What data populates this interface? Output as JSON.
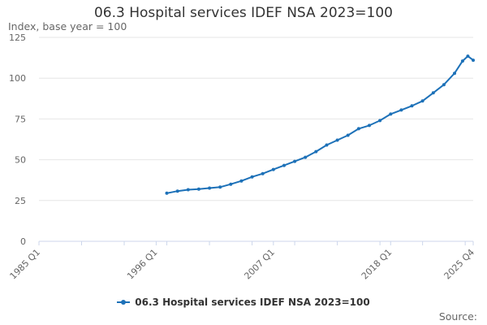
{
  "chart_data": {
    "type": "line",
    "title": "06.3 Hospital services IDEF NSA 2023=100",
    "ylabel": "Index, base year = 100",
    "xlabel": "",
    "ylim": [
      0,
      125
    ],
    "yticks": [
      0,
      25,
      50,
      75,
      100,
      125
    ],
    "xlim": [
      "1985 Q1",
      "2025 Q4"
    ],
    "xticks": [
      "1985 Q1",
      "1996 Q1",
      "2007 Q1",
      "2018 Q1",
      "2025 Q4"
    ],
    "grid": true,
    "legend_position": "bottom",
    "series": [
      {
        "name": "06.3 Hospital services IDEF NSA 2023=100",
        "color": "#1d71b8",
        "points": [
          {
            "x": "1997 Q1",
            "y": 29.5
          },
          {
            "x": "1998 Q1",
            "y": 30.8
          },
          {
            "x": "1999 Q1",
            "y": 31.6
          },
          {
            "x": "2000 Q1",
            "y": 32.0
          },
          {
            "x": "2001 Q1",
            "y": 32.6
          },
          {
            "x": "2002 Q1",
            "y": 33.2
          },
          {
            "x": "2003 Q1",
            "y": 35.0
          },
          {
            "x": "2004 Q1",
            "y": 37.0
          },
          {
            "x": "2005 Q1",
            "y": 39.5
          },
          {
            "x": "2006 Q1",
            "y": 41.5
          },
          {
            "x": "2007 Q1",
            "y": 44.0
          },
          {
            "x": "2008 Q1",
            "y": 46.5
          },
          {
            "x": "2009 Q1",
            "y": 49.0
          },
          {
            "x": "2010 Q1",
            "y": 51.5
          },
          {
            "x": "2011 Q1",
            "y": 55.0
          },
          {
            "x": "2012 Q1",
            "y": 59.0
          },
          {
            "x": "2013 Q1",
            "y": 62.0
          },
          {
            "x": "2014 Q1",
            "y": 65.0
          },
          {
            "x": "2015 Q1",
            "y": 69.0
          },
          {
            "x": "2016 Q1",
            "y": 71.0
          },
          {
            "x": "2017 Q1",
            "y": 74.0
          },
          {
            "x": "2018 Q1",
            "y": 78.0
          },
          {
            "x": "2019 Q1",
            "y": 80.5
          },
          {
            "x": "2020 Q1",
            "y": 83.0
          },
          {
            "x": "2021 Q1",
            "y": 86.0
          },
          {
            "x": "2022 Q1",
            "y": 91.0
          },
          {
            "x": "2023 Q1",
            "y": 96.0
          },
          {
            "x": "2024 Q1",
            "y": 103.0
          },
          {
            "x": "2024 Q4",
            "y": 110.5
          },
          {
            "x": "2025 Q2",
            "y": 113.5
          },
          {
            "x": "2025 Q4",
            "y": 111.0
          }
        ]
      }
    ]
  },
  "footer": {
    "source_label": "Source:"
  }
}
